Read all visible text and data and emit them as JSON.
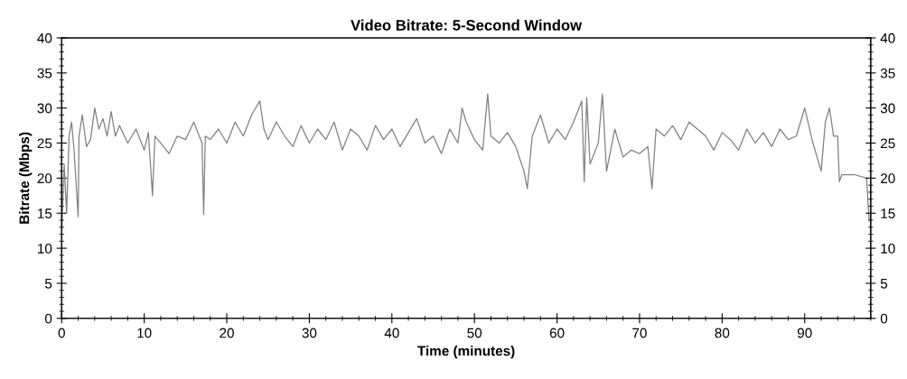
{
  "chart_data": {
    "type": "line",
    "title": "Video Bitrate: 5-Second Window",
    "xlabel": "Time (minutes)",
    "ylabel": "Bitrate (Mbps)",
    "x": [
      0,
      0.3,
      0.6,
      0.9,
      1.2,
      1.5,
      2.0,
      2.1,
      2.5,
      3,
      3.5,
      4,
      4.5,
      5,
      5.5,
      6,
      6.5,
      7,
      8,
      9,
      10,
      10.5,
      11,
      11.3,
      12,
      13,
      14,
      15,
      16,
      17,
      17.2,
      17.4,
      18,
      19,
      20,
      21,
      22,
      23,
      24,
      24.5,
      25,
      26,
      27,
      28,
      29,
      30,
      31,
      32,
      33,
      34,
      35,
      36,
      37,
      38,
      39,
      40,
      41,
      42,
      43,
      44,
      45,
      46,
      47,
      48,
      48.5,
      49,
      50,
      51,
      51.6,
      52,
      53,
      54,
      55,
      56,
      56.4,
      57,
      58,
      59,
      60,
      61,
      62,
      63,
      63.3,
      63.6,
      64,
      65,
      65.5,
      66,
      67,
      68,
      69,
      70,
      71,
      71.5,
      72,
      73,
      74,
      75,
      76,
      77,
      78,
      79,
      80,
      81,
      82,
      83,
      84,
      85,
      86,
      87,
      88,
      89,
      90,
      91,
      92,
      92.5,
      93,
      93.5,
      94,
      94.2,
      94.5,
      96,
      97.5,
      97.8
    ],
    "series": [
      {
        "color": "#808080",
        "values": [
          12,
          22,
          15,
          26,
          28,
          24,
          14.5,
          26,
          29,
          24.5,
          25.5,
          30,
          27,
          28.5,
          26,
          29.5,
          26,
          27.5,
          25,
          27,
          24,
          26.5,
          17.5,
          26,
          25,
          23.5,
          26,
          25.5,
          28,
          25,
          14.8,
          26,
          25.5,
          27,
          25,
          28,
          26,
          29,
          31,
          27,
          25.5,
          28,
          26,
          24.5,
          27.5,
          25,
          27,
          25.5,
          28,
          24,
          27,
          26,
          24,
          27.5,
          25.5,
          27,
          24.5,
          26.5,
          28.5,
          25,
          26,
          23.5,
          27,
          25,
          30,
          28,
          25.5,
          24,
          32,
          26,
          25,
          26.5,
          24.5,
          21,
          18.5,
          26,
          29,
          25,
          27,
          25.5,
          28,
          31,
          19.5,
          31.5,
          22,
          25,
          32,
          21,
          27,
          23,
          24,
          23.5,
          24.5,
          18.5,
          27,
          26,
          27.5,
          25.5,
          28,
          27,
          26,
          24,
          26.5,
          25.5,
          24,
          27,
          25,
          26.5,
          24.5,
          27,
          25.5,
          26,
          30,
          25,
          21,
          28,
          30,
          26,
          26,
          19.5,
          20.5,
          20.5,
          20,
          14
        ]
      }
    ],
    "xlim": [
      0,
      98
    ],
    "xticks": [
      0,
      10,
      20,
      30,
      40,
      50,
      60,
      70,
      80,
      90
    ],
    "ylim": [
      0,
      40
    ],
    "yticks": [
      0,
      5,
      10,
      15,
      20,
      25,
      30,
      35,
      40
    ],
    "y2lim": [
      0,
      40
    ],
    "y2ticks": [
      0,
      5,
      10,
      15,
      20,
      25,
      30,
      35,
      40
    ],
    "grid": false,
    "legend": false
  }
}
